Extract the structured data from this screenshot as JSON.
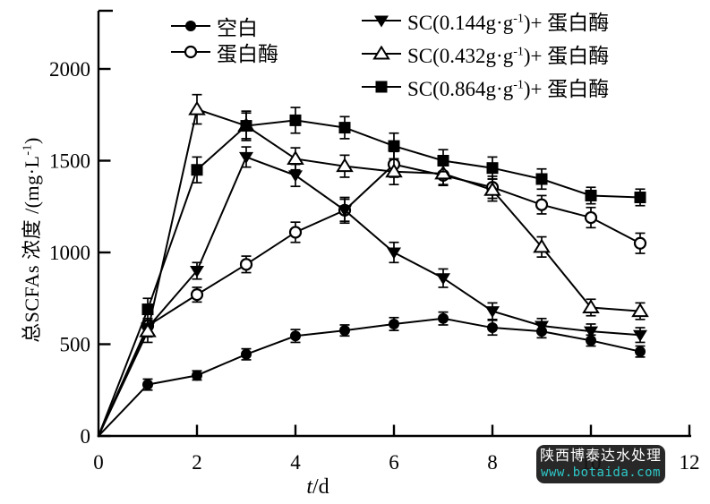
{
  "figure": {
    "background": "#ffffff",
    "ink": "#000000"
  },
  "axes": {
    "x": {
      "label_var": "t",
      "label_rest": "/d",
      "label_full": "t/d",
      "ticks": [
        0,
        2,
        4,
        6,
        8,
        10,
        12
      ],
      "range": [
        0,
        12
      ]
    },
    "y": {
      "label_pre": "总SCFAs 浓度 /(mg·L",
      "label_sup": "-1",
      "label_post": ")",
      "label_full": "总SCFAs 浓度 /(mg·L⁻¹)",
      "ticks": [
        0,
        500,
        1000,
        1500,
        2000
      ],
      "range": [
        0,
        2300
      ]
    }
  },
  "chart_data": {
    "type": "line",
    "title": "",
    "xlabel": "t/d",
    "ylabel": "总SCFAs 浓度 /(mg·L⁻¹)",
    "xlim": [
      0,
      12
    ],
    "ylim": [
      0,
      2300
    ],
    "grid": false,
    "legend_position": "top-inside",
    "error_bars": true,
    "x": [
      0,
      1,
      2,
      3,
      4,
      5,
      6,
      7,
      8,
      9,
      10,
      11
    ],
    "series": [
      {
        "name": "空白",
        "marker": "circle-filled",
        "label": {
          "pre": "空白",
          "sup": "",
          "post": ""
        },
        "values": [
          0,
          280,
          330,
          445,
          545,
          575,
          610,
          640,
          590,
          570,
          520,
          460
        ],
        "errors": [
          0,
          30,
          25,
          30,
          35,
          30,
          35,
          35,
          40,
          35,
          30,
          30
        ]
      },
      {
        "name": "蛋白酶",
        "marker": "circle-open",
        "label": {
          "pre": "蛋白酶",
          "sup": "",
          "post": ""
        },
        "values": [
          0,
          600,
          770,
          935,
          1110,
          1230,
          1480,
          1420,
          1355,
          1260,
          1190,
          1050
        ],
        "errors": [
          0,
          40,
          40,
          45,
          55,
          60,
          70,
          55,
          60,
          50,
          55,
          55
        ]
      },
      {
        "name": "SC(0.144g·g⁻¹)+ 蛋白酶",
        "marker": "triangle-down-filled",
        "label": {
          "pre": "SC(0.144g·g",
          "sup": "-1",
          "post": ")+ 蛋白酶"
        },
        "values": [
          0,
          590,
          900,
          1520,
          1420,
          1230,
          1000,
          860,
          680,
          600,
          570,
          550
        ],
        "errors": [
          0,
          50,
          45,
          55,
          60,
          70,
          55,
          50,
          45,
          40,
          40,
          40
        ]
      },
      {
        "name": "SC(0.432g·g⁻¹)+ 蛋白酶",
        "marker": "triangle-up-open",
        "label": {
          "pre": "SC(0.432g·g",
          "sup": "-1",
          "post": ")+ 蛋白酶"
        },
        "values": [
          0,
          570,
          1780,
          1690,
          1510,
          1470,
          1440,
          1430,
          1340,
          1030,
          700,
          680
        ],
        "errors": [
          0,
          60,
          80,
          70,
          60,
          60,
          70,
          60,
          60,
          55,
          45,
          45
        ]
      },
      {
        "name": "SC(0.864g·g⁻¹)+ 蛋白酶",
        "marker": "square-filled",
        "label": {
          "pre": "SC(0.864g·g",
          "sup": "-1",
          "post": ")+ 蛋白酶"
        },
        "values": [
          0,
          690,
          1450,
          1690,
          1720,
          1680,
          1580,
          1500,
          1460,
          1400,
          1310,
          1300
        ],
        "errors": [
          0,
          60,
          70,
          80,
          70,
          60,
          70,
          60,
          60,
          55,
          45,
          45
        ]
      }
    ]
  },
  "watermark": {
    "site_name": "陕西博泰达水处理",
    "url_text": "www.botaida.com",
    "bg_color": "rgba(22,22,22,0.92)",
    "name_color": "#ffffff",
    "url_color": "#2fc8c8"
  }
}
